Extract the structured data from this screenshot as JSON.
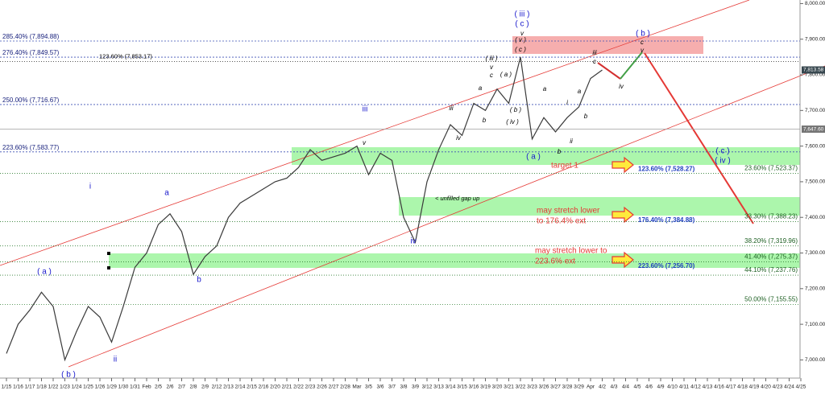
{
  "chart_data": {
    "type": "line",
    "color": "#3a3a3a",
    "categories": [
      "1/15",
      "1/16",
      "1/17",
      "1/18",
      "1/22",
      "1/23",
      "1/24",
      "1/25",
      "1/26",
      "1/29",
      "1/30",
      "1/31",
      "Feb",
      "2/5",
      "2/6",
      "2/7",
      "2/8",
      "2/9",
      "2/12",
      "2/13",
      "2/14",
      "2/15",
      "2/16",
      "2/20",
      "2/21",
      "2/22",
      "2/23",
      "2/26",
      "2/27",
      "2/28",
      "Mar",
      "3/5",
      "3/6",
      "3/7",
      "3/8",
      "3/9",
      "3/12",
      "3/13",
      "3/14",
      "3/15",
      "3/16",
      "3/19",
      "3/20",
      "3/21",
      "3/22",
      "3/23",
      "3/26",
      "3/27",
      "3/28",
      "3/29",
      "Apr",
      "4/2",
      "4/3",
      "4/4",
      "4/5",
      "4/6",
      "4/9",
      "4/10",
      "4/11",
      "4/12",
      "4/13",
      "4/16",
      "4/17",
      "4/18",
      "4/19",
      "4/20",
      "4/23",
      "4/24",
      "4/25"
    ],
    "values": [
      7018,
      7100,
      7140,
      7190,
      7150,
      7000,
      7080,
      7150,
      7120,
      7050,
      7150,
      7260,
      7300,
      7380,
      7410,
      7360,
      7240,
      7290,
      7320,
      7400,
      7440,
      7460,
      7480,
      7500,
      7510,
      7540,
      7590,
      7560,
      7570,
      7580,
      7600,
      7520,
      7580,
      7560,
      7400,
      7330,
      7500,
      7590,
      7660,
      7630,
      7720,
      7700,
      7760,
      7720,
      7850,
      7620,
      7680,
      7640,
      7680,
      7710,
      7790,
      7813.58,
      null,
      null,
      null,
      null,
      null,
      null,
      null,
      null,
      null,
      null,
      null,
      null,
      null,
      null,
      null,
      null,
      null
    ],
    "ylim": [
      6949,
      8010
    ],
    "yticks": [
      {
        "value": 7000,
        "label": "7,000.00"
      },
      {
        "value": 7100,
        "label": "7,100.00"
      },
      {
        "value": 7200,
        "label": "7,200.00"
      },
      {
        "value": 7300,
        "label": "7,300.00"
      },
      {
        "value": 7400,
        "label": "7,400.00"
      },
      {
        "value": 7500,
        "label": "7,500.00"
      },
      {
        "value": 7600,
        "label": "7,600.00"
      },
      {
        "value": 7700,
        "label": "7,700.00"
      },
      {
        "value": 7800,
        "label": "7,800.00"
      },
      {
        "value": 7900,
        "label": "7,900.00"
      },
      {
        "value": 8000,
        "label": "8,000.00"
      }
    ],
    "price_labels": [
      {
        "value": 7813.58,
        "label": "7,813.58"
      },
      {
        "value": 7647.6,
        "label": "7,647.60"
      }
    ],
    "fib_levels_left": [
      {
        "value": 7894.88,
        "label": "285.40% (7,894.88)"
      },
      {
        "value": 7849.57,
        "label": "276.40% (7,849.57)"
      },
      {
        "value": 7716.67,
        "label": "250.00% (7,716.67)"
      },
      {
        "value": 7583.77,
        "label": "223.60% (7,583.77)"
      }
    ],
    "fib_note": {
      "value": 7853.17,
      "label": "123.60% (7,853.17)"
    },
    "fib_levels_right": [
      {
        "value": 7523.37,
        "label": "23.60% (7,523.37)"
      },
      {
        "value": 7388.23,
        "label": "33.30% (7,388.23)"
      },
      {
        "value": 7319.96,
        "label": "38.20% (7,319.96)"
      },
      {
        "value": 7275.37,
        "label": "41.40% (7,275.37)"
      },
      {
        "value": 7237.76,
        "label": "44.10% (7,237.76)"
      },
      {
        "value": 7155.55,
        "label": "50.00% (7,155.55)"
      }
    ],
    "extension_targets": [
      {
        "value": 7528.27,
        "label": "123.60% (7,528.27)"
      },
      {
        "value": 7384.88,
        "label": "176.40% (7,384.88)"
      },
      {
        "value": 7256.7,
        "label": "223.60% (7,256.70)"
      }
    ],
    "notes": [
      "target 1",
      "may stretch lower",
      "to 176.4% ext",
      "may stretch lower to",
      "223.6% ext"
    ],
    "gap_note": "< unfilled gap up",
    "wave_labels_major": [
      "( a )",
      "( b )",
      "i",
      "ii",
      "a",
      "b",
      "iii",
      "iv",
      "( iii )",
      "( c )",
      "( a )",
      "( b )",
      "( c )",
      "( iv )"
    ],
    "wave_labels_minor": [
      "v",
      "( v )",
      "( c )",
      "iii",
      "iv",
      "a",
      "b",
      "( iii )",
      "v",
      "c",
      "( a )",
      "( b )",
      "( iv )",
      "a",
      "b",
      "i",
      "ii",
      "a",
      "b",
      "iii",
      "c",
      "iv",
      "c",
      "v",
      "v"
    ]
  }
}
